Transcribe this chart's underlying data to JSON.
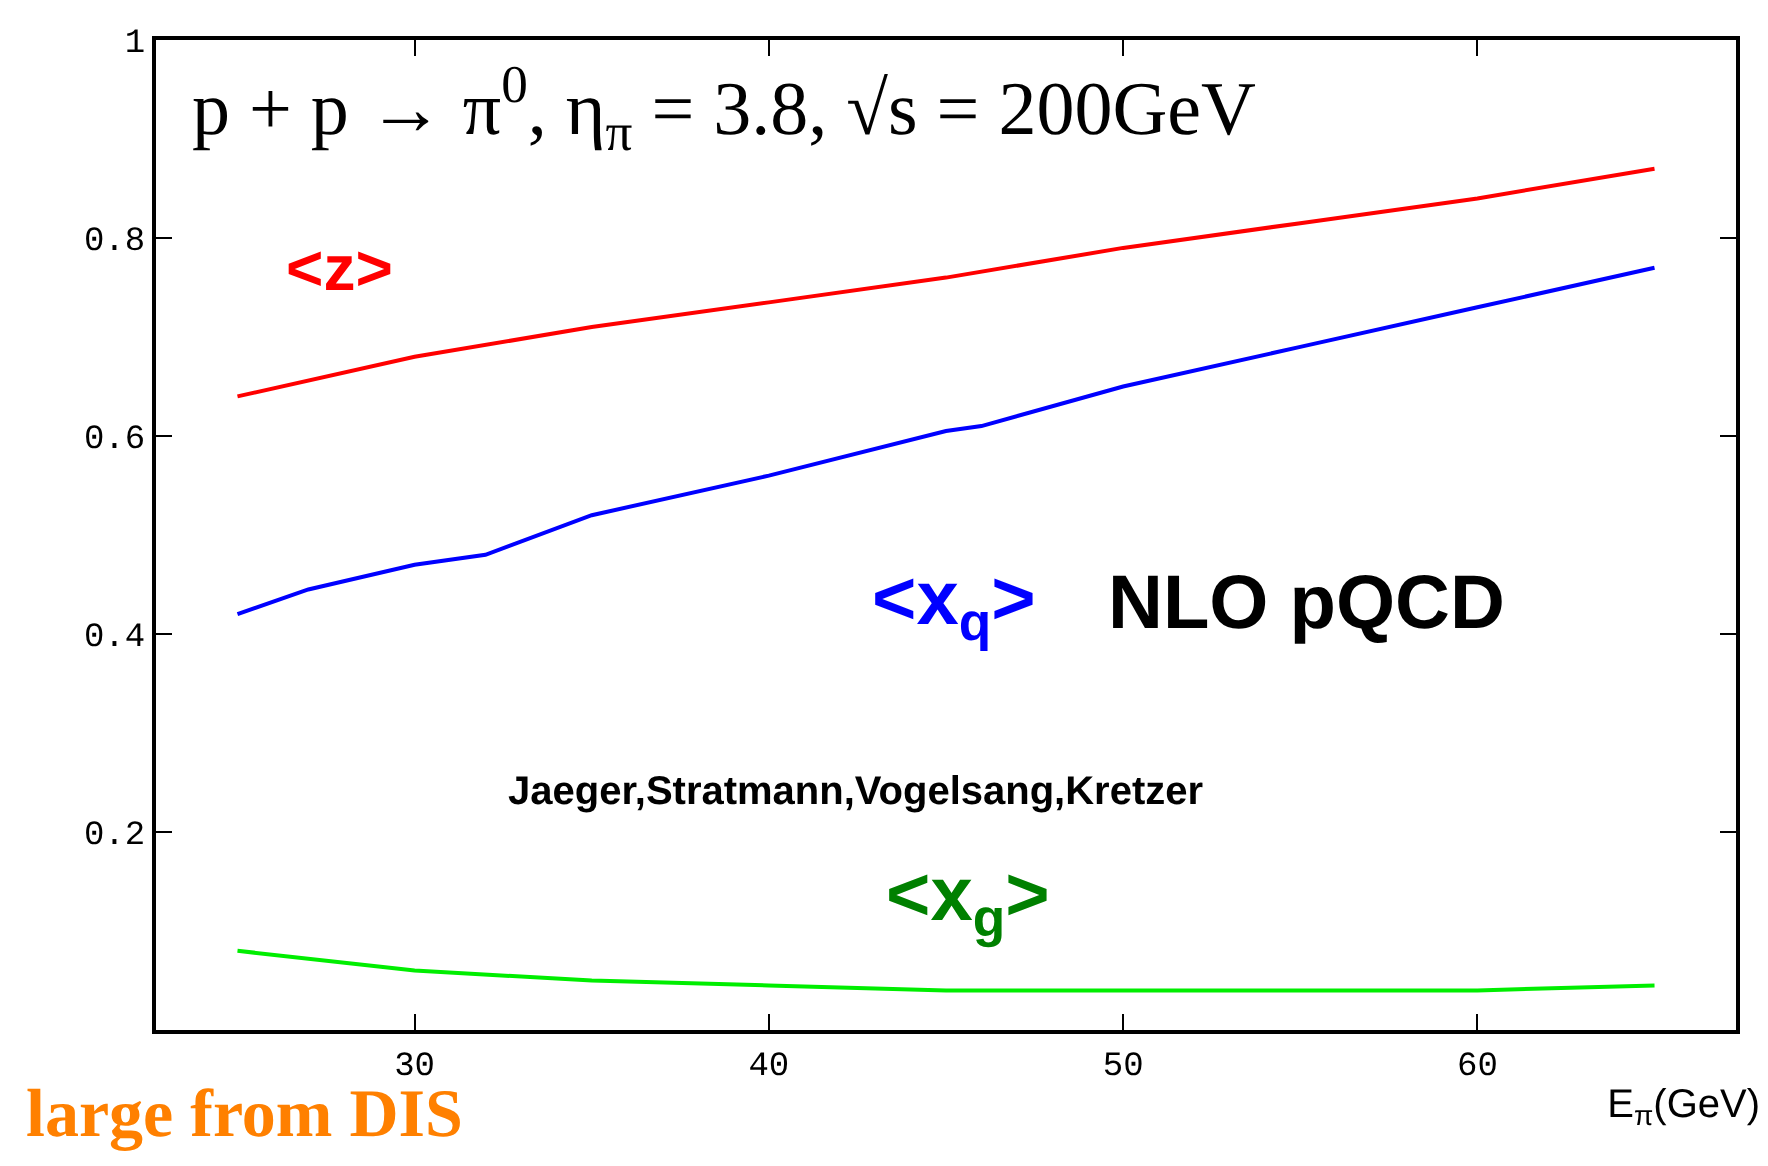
{
  "chart_data": {
    "type": "line",
    "title": "p + p → π$^{0}$, η$_{π}$ = 3.8, √s = 200GeV",
    "xlabel": "E$_{π}$(GeV)",
    "xlim": [
      22.7,
      67.3
    ],
    "xticks": [
      30,
      40,
      50,
      60
    ],
    "ylim": [
      0,
      1
    ],
    "yticks": [
      0.2,
      0.4,
      0.6,
      0.8,
      1
    ],
    "grid": false,
    "legend": false,
    "marker": "none",
    "line_style": "solid",
    "series": [
      {
        "name": "<z>",
        "color": "#ff0000",
        "x": [
          25,
          30,
          35,
          40,
          45,
          50,
          55,
          60,
          65
        ],
        "values": [
          0.64,
          0.68,
          0.71,
          0.735,
          0.76,
          0.79,
          0.815,
          0.84,
          0.87
        ]
      },
      {
        "name": "<x$_{q}$>",
        "color": "#0000ff",
        "x": [
          25,
          27,
          30,
          32,
          35,
          40,
          45,
          46,
          50,
          55,
          60,
          65
        ],
        "values": [
          0.42,
          0.445,
          0.47,
          0.48,
          0.52,
          0.56,
          0.605,
          0.61,
          0.65,
          0.69,
          0.73,
          0.77
        ]
      },
      {
        "name": "<x$_{g}$>",
        "color": "#00ee00",
        "x": [
          25,
          30,
          35,
          40,
          45,
          55,
          60,
          65
        ],
        "values": [
          0.08,
          0.06,
          0.05,
          0.045,
          0.04,
          0.04,
          0.04,
          0.045
        ]
      }
    ],
    "annotations": [
      "NLO pQCD",
      "Jaeger,Stratmann,Vogelsang,Kretzer",
      "large from DIS"
    ]
  }
}
